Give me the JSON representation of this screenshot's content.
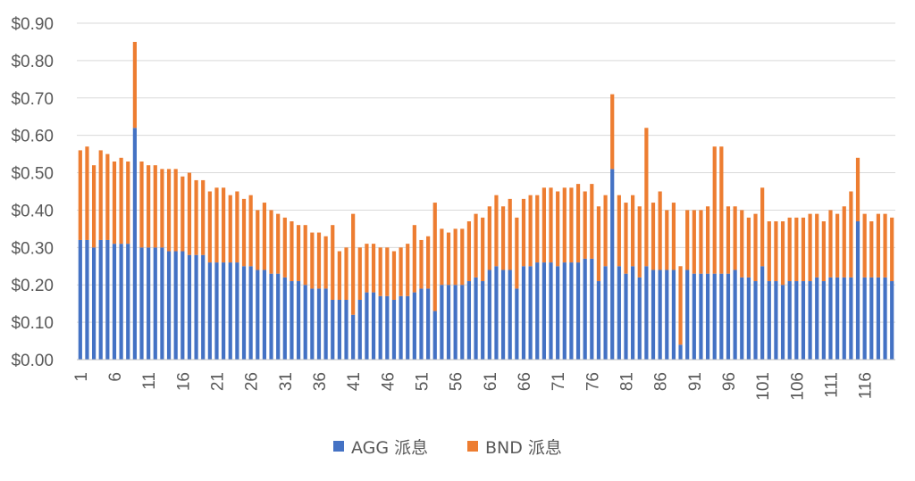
{
  "chart_data": {
    "type": "bar",
    "stacked": true,
    "title": "",
    "xlabel": "",
    "ylabel": "",
    "ylim": [
      0,
      0.9
    ],
    "y_ticks": [
      "$0.00",
      "$0.10",
      "$0.20",
      "$0.30",
      "$0.40",
      "$0.50",
      "$0.60",
      "$0.70",
      "$0.80",
      "$0.90"
    ],
    "y_tick_values": [
      0,
      0.1,
      0.2,
      0.3,
      0.4,
      0.5,
      0.6,
      0.7,
      0.8,
      0.9
    ],
    "x_tick_labels": [
      "1",
      "6",
      "11",
      "16",
      "21",
      "26",
      "31",
      "36",
      "41",
      "46",
      "51",
      "56",
      "61",
      "66",
      "71",
      "76",
      "81",
      "86",
      "91",
      "96",
      "101",
      "106",
      "111",
      "116"
    ],
    "grid": true,
    "legend_position": "bottom",
    "colors": {
      "agg": "#4472C4",
      "bnd": "#ED7D31",
      "grid": "#D9D9D9",
      "axis": "#BFBFBF",
      "text": "#595959"
    },
    "categories": [
      1,
      2,
      3,
      4,
      5,
      6,
      7,
      8,
      9,
      10,
      11,
      12,
      13,
      14,
      15,
      16,
      17,
      18,
      19,
      20,
      21,
      22,
      23,
      24,
      25,
      26,
      27,
      28,
      29,
      30,
      31,
      32,
      33,
      34,
      35,
      36,
      37,
      38,
      39,
      40,
      41,
      42,
      43,
      44,
      45,
      46,
      47,
      48,
      49,
      50,
      51,
      52,
      53,
      54,
      55,
      56,
      57,
      58,
      59,
      60,
      61,
      62,
      63,
      64,
      65,
      66,
      67,
      68,
      69,
      70,
      71,
      72,
      73,
      74,
      75,
      76,
      77,
      78,
      79,
      80,
      81,
      82,
      83,
      84,
      85,
      86,
      87,
      88,
      89,
      90,
      91,
      92,
      93,
      94,
      95,
      96,
      97,
      98,
      99,
      100,
      101,
      102,
      103,
      104,
      105,
      106,
      107,
      108,
      109,
      110,
      111,
      112,
      113,
      114,
      115,
      116,
      117,
      118,
      119,
      120
    ],
    "series": [
      {
        "name": "AGG 派息",
        "values": [
          0.32,
          0.32,
          0.3,
          0.32,
          0.32,
          0.31,
          0.31,
          0.31,
          0.62,
          0.3,
          0.3,
          0.3,
          0.3,
          0.29,
          0.29,
          0.29,
          0.28,
          0.28,
          0.28,
          0.26,
          0.26,
          0.26,
          0.26,
          0.26,
          0.25,
          0.25,
          0.24,
          0.24,
          0.23,
          0.23,
          0.22,
          0.21,
          0.21,
          0.2,
          0.19,
          0.19,
          0.19,
          0.16,
          0.16,
          0.16,
          0.12,
          0.16,
          0.18,
          0.18,
          0.17,
          0.17,
          0.16,
          0.17,
          0.17,
          0.18,
          0.19,
          0.19,
          0.13,
          0.2,
          0.2,
          0.2,
          0.2,
          0.21,
          0.22,
          0.21,
          0.24,
          0.25,
          0.24,
          0.24,
          0.19,
          0.25,
          0.25,
          0.26,
          0.26,
          0.26,
          0.25,
          0.26,
          0.26,
          0.26,
          0.27,
          0.27,
          0.21,
          0.25,
          0.51,
          0.25,
          0.23,
          0.25,
          0.22,
          0.25,
          0.24,
          0.24,
          0.24,
          0.24,
          0.04,
          0.24,
          0.23,
          0.23,
          0.23,
          0.23,
          0.23,
          0.23,
          0.24,
          0.22,
          0.22,
          0.21,
          0.25,
          0.21,
          0.21,
          0.2,
          0.21,
          0.21,
          0.21,
          0.21,
          0.22,
          0.21,
          0.22,
          0.22,
          0.22,
          0.22,
          0.37,
          0.22,
          0.22,
          0.22,
          0.22,
          0.21
        ]
      },
      {
        "name": "BND 派息",
        "values": [
          0.24,
          0.25,
          0.22,
          0.24,
          0.23,
          0.22,
          0.23,
          0.22,
          0.23,
          0.23,
          0.22,
          0.22,
          0.21,
          0.22,
          0.22,
          0.2,
          0.22,
          0.2,
          0.2,
          0.19,
          0.2,
          0.2,
          0.18,
          0.19,
          0.18,
          0.19,
          0.16,
          0.18,
          0.17,
          0.16,
          0.16,
          0.16,
          0.15,
          0.16,
          0.15,
          0.15,
          0.14,
          0.2,
          0.13,
          0.14,
          0.27,
          0.14,
          0.13,
          0.13,
          0.13,
          0.13,
          0.13,
          0.13,
          0.14,
          0.18,
          0.13,
          0.14,
          0.29,
          0.15,
          0.14,
          0.15,
          0.15,
          0.16,
          0.17,
          0.17,
          0.17,
          0.19,
          0.17,
          0.19,
          0.19,
          0.18,
          0.19,
          0.18,
          0.2,
          0.2,
          0.2,
          0.2,
          0.2,
          0.21,
          0.18,
          0.2,
          0.2,
          0.19,
          0.2,
          0.19,
          0.19,
          0.19,
          0.19,
          0.37,
          0.18,
          0.21,
          0.16,
          0.18,
          0.21,
          0.16,
          0.17,
          0.17,
          0.18,
          0.34,
          0.34,
          0.18,
          0.17,
          0.18,
          0.16,
          0.18,
          0.21,
          0.16,
          0.16,
          0.17,
          0.17,
          0.17,
          0.17,
          0.18,
          0.17,
          0.16,
          0.18,
          0.17,
          0.19,
          0.23,
          0.17,
          0.17,
          0.15,
          0.17,
          0.17,
          0.17
        ]
      }
    ]
  }
}
